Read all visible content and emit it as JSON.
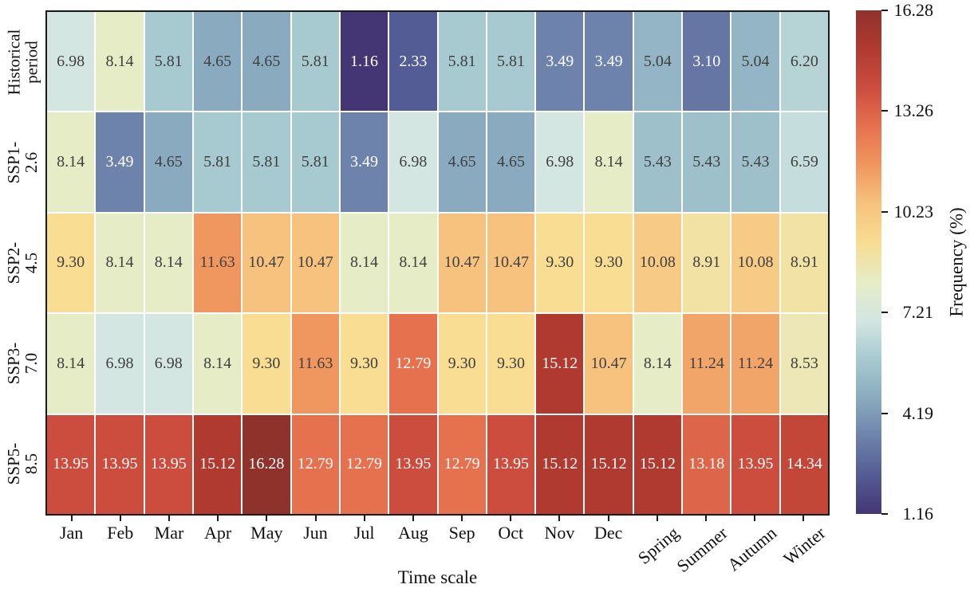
{
  "chart_data": {
    "type": "heatmap",
    "title": "",
    "xlabel": "Time scale",
    "colorbar_label": "Frequency (%)",
    "columns": [
      "Jan",
      "Feb",
      "Mar",
      "Apr",
      "May",
      "Jun",
      "Jul",
      "Aug",
      "Sep",
      "Oct",
      "Nov",
      "Dec",
      "Spring",
      "Summer",
      "Autumn",
      "Winter"
    ],
    "rotated_column_start_index": 12,
    "rows": [
      "Historical\nperiod",
      "SSP1-2.6",
      "SSP2-4.5",
      "SSP3-7.0",
      "SSP5-8.5"
    ],
    "values": [
      [
        6.98,
        8.14,
        5.81,
        4.65,
        4.65,
        5.81,
        1.16,
        2.33,
        5.81,
        5.81,
        3.49,
        3.49,
        5.04,
        3.1,
        5.04,
        6.2
      ],
      [
        8.14,
        3.49,
        4.65,
        5.81,
        5.81,
        5.81,
        3.49,
        6.98,
        4.65,
        4.65,
        6.98,
        8.14,
        5.43,
        5.43,
        5.43,
        6.59
      ],
      [
        9.3,
        8.14,
        8.14,
        11.63,
        10.47,
        10.47,
        8.14,
        8.14,
        10.47,
        10.47,
        9.3,
        9.3,
        10.08,
        8.91,
        10.08,
        8.91
      ],
      [
        8.14,
        6.98,
        6.98,
        8.14,
        9.3,
        11.63,
        9.3,
        12.79,
        9.3,
        9.3,
        15.12,
        10.47,
        8.14,
        11.24,
        11.24,
        8.53
      ],
      [
        13.95,
        13.95,
        13.95,
        15.12,
        16.28,
        12.79,
        12.79,
        13.95,
        12.79,
        13.95,
        15.12,
        15.12,
        15.12,
        13.18,
        13.95,
        14.34
      ]
    ],
    "vmin": 1.16,
    "vmax": 16.28,
    "colorbar_ticks": [
      16.28,
      13.26,
      10.23,
      7.21,
      4.19,
      1.16
    ],
    "colormap_stops": [
      {
        "v": 1.16,
        "c": "#443674"
      },
      {
        "v": 2.33,
        "c": "#545c95"
      },
      {
        "v": 3.49,
        "c": "#6d83ab"
      },
      {
        "v": 4.65,
        "c": "#8aabbf"
      },
      {
        "v": 5.81,
        "c": "#a7cad0"
      },
      {
        "v": 6.98,
        "c": "#d4e6e2"
      },
      {
        "v": 8.14,
        "c": "#e6ecc5"
      },
      {
        "v": 9.3,
        "c": "#f8dd92"
      },
      {
        "v": 10.47,
        "c": "#f7c27e"
      },
      {
        "v": 11.63,
        "c": "#f0975f"
      },
      {
        "v": 12.79,
        "c": "#e5714f"
      },
      {
        "v": 13.95,
        "c": "#cc4d3e"
      },
      {
        "v": 15.12,
        "c": "#b03a30"
      },
      {
        "v": 16.28,
        "c": "#8f322c"
      }
    ],
    "text_color_dark": "#404040",
    "text_color_light": "#ffffff",
    "white_text_low_max": 3.49,
    "white_text_high_min": 12.79,
    "frame_color": "#1a1a1a"
  }
}
